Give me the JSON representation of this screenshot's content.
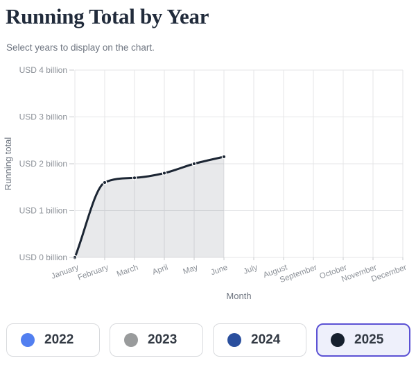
{
  "header": {
    "title": "Running Total by Year",
    "subtitle": "Select years to display on the chart."
  },
  "chart_data": {
    "type": "area",
    "title": "",
    "xlabel": "Month",
    "ylabel": "Running total",
    "categories": [
      "January",
      "February",
      "March",
      "April",
      "May",
      "June",
      "July",
      "August",
      "September",
      "October",
      "November",
      "December"
    ],
    "ytick_labels": [
      "USD 0 billion",
      "USD 1 billion",
      "USD 2 billion",
      "USD 3 billion",
      "USD 4 billion"
    ],
    "ylim": [
      0,
      4
    ],
    "grid": true,
    "legend_position": "bottom",
    "series": [
      {
        "name": "2025",
        "unit": "USD billion",
        "x": [
          "January",
          "February",
          "March",
          "April",
          "May",
          "June"
        ],
        "values": [
          0,
          1.6,
          1.7,
          1.8,
          2.0,
          2.15
        ],
        "line_color": "#1b2533",
        "area_fill": "rgba(33,42,54,0.10)"
      }
    ]
  },
  "year_buttons": [
    {
      "label": "2022",
      "dot_color": "#527ff0",
      "selected": false
    },
    {
      "label": "2023",
      "dot_color": "#999b9c",
      "selected": false
    },
    {
      "label": "2024",
      "dot_color": "#2a4f9e",
      "selected": false
    },
    {
      "label": "2025",
      "dot_color": "#16202e",
      "selected": true
    }
  ],
  "colors": {
    "title_text": "#212b3b",
    "subtitle_text": "#6e7580",
    "tick_text": "#8b9097",
    "axis_title_text": "#6e7580",
    "gridline": "#e4e5e7",
    "tick_mark": "#c7cacd",
    "selected_border": "#5b51d4",
    "selected_bg": "#eef0fb",
    "button_border": "#d8dadd",
    "button_text": "#333a44"
  }
}
